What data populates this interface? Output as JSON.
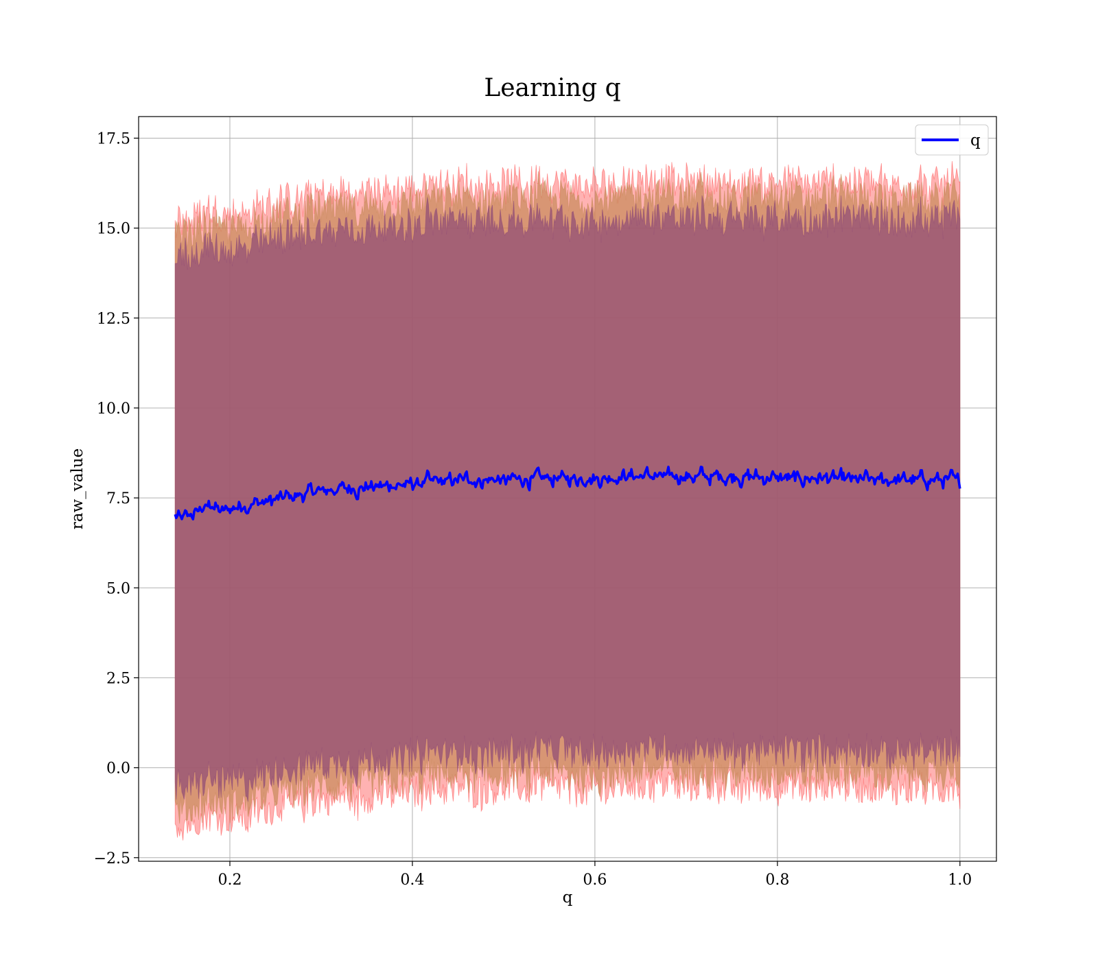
{
  "chart_data": {
    "type": "line",
    "title": "Learning q",
    "xlabel": "q",
    "ylabel": "raw_value",
    "xlim": [
      0.1,
      1.04
    ],
    "ylim": [
      -2.6,
      18.1
    ],
    "xticks": [
      0.2,
      0.4,
      0.6,
      0.8,
      1.0
    ],
    "xtick_labels": [
      "0.2",
      "0.4",
      "0.6",
      "0.8",
      "1.0"
    ],
    "yticks": [
      -2.5,
      0.0,
      2.5,
      5.0,
      7.5,
      10.0,
      12.5,
      15.0,
      17.5
    ],
    "ytick_labels": [
      "−2.5",
      "0.0",
      "2.5",
      "5.0",
      "7.5",
      "10.0",
      "12.5",
      "15.0",
      "17.5"
    ],
    "grid": true,
    "legend": {
      "position": "top-right",
      "entries": [
        {
          "label": "q",
          "color": "#0000ff"
        }
      ]
    },
    "series": [
      {
        "name": "q",
        "color": "#0000ff",
        "x_range": [
          0.14,
          1.0
        ],
        "x": [
          0.14,
          0.15,
          0.16,
          0.17,
          0.18,
          0.19,
          0.2,
          0.22,
          0.24,
          0.26,
          0.28,
          0.3,
          0.32,
          0.35,
          0.38,
          0.4,
          0.42,
          0.45,
          0.5,
          0.55,
          0.6,
          0.65,
          0.7,
          0.75,
          0.8,
          0.85,
          0.9,
          0.95,
          1.0
        ],
        "values": [
          7.0,
          6.9,
          7.1,
          7.2,
          7.3,
          7.1,
          7.2,
          7.3,
          7.4,
          7.5,
          7.6,
          7.7,
          7.75,
          7.8,
          7.85,
          7.9,
          7.95,
          8.0,
          8.0,
          8.05,
          8.05,
          8.1,
          8.1,
          8.1,
          8.05,
          8.05,
          8.0,
          8.0,
          8.0
        ],
        "noise_amplitude": 0.3
      }
    ],
    "bands": [
      {
        "name": "outer band (red)",
        "color": "#ff5555",
        "lower_offset": -8.6,
        "upper_offset": 8.2
      },
      {
        "name": "middle band (orange)",
        "color": "#c88a5a",
        "lower_offset": -8.2,
        "upper_offset": 7.8
      },
      {
        "name": "inner band (purple)",
        "color": "#8e4a76",
        "lower_offset": -7.6,
        "upper_offset": 7.2
      }
    ]
  }
}
